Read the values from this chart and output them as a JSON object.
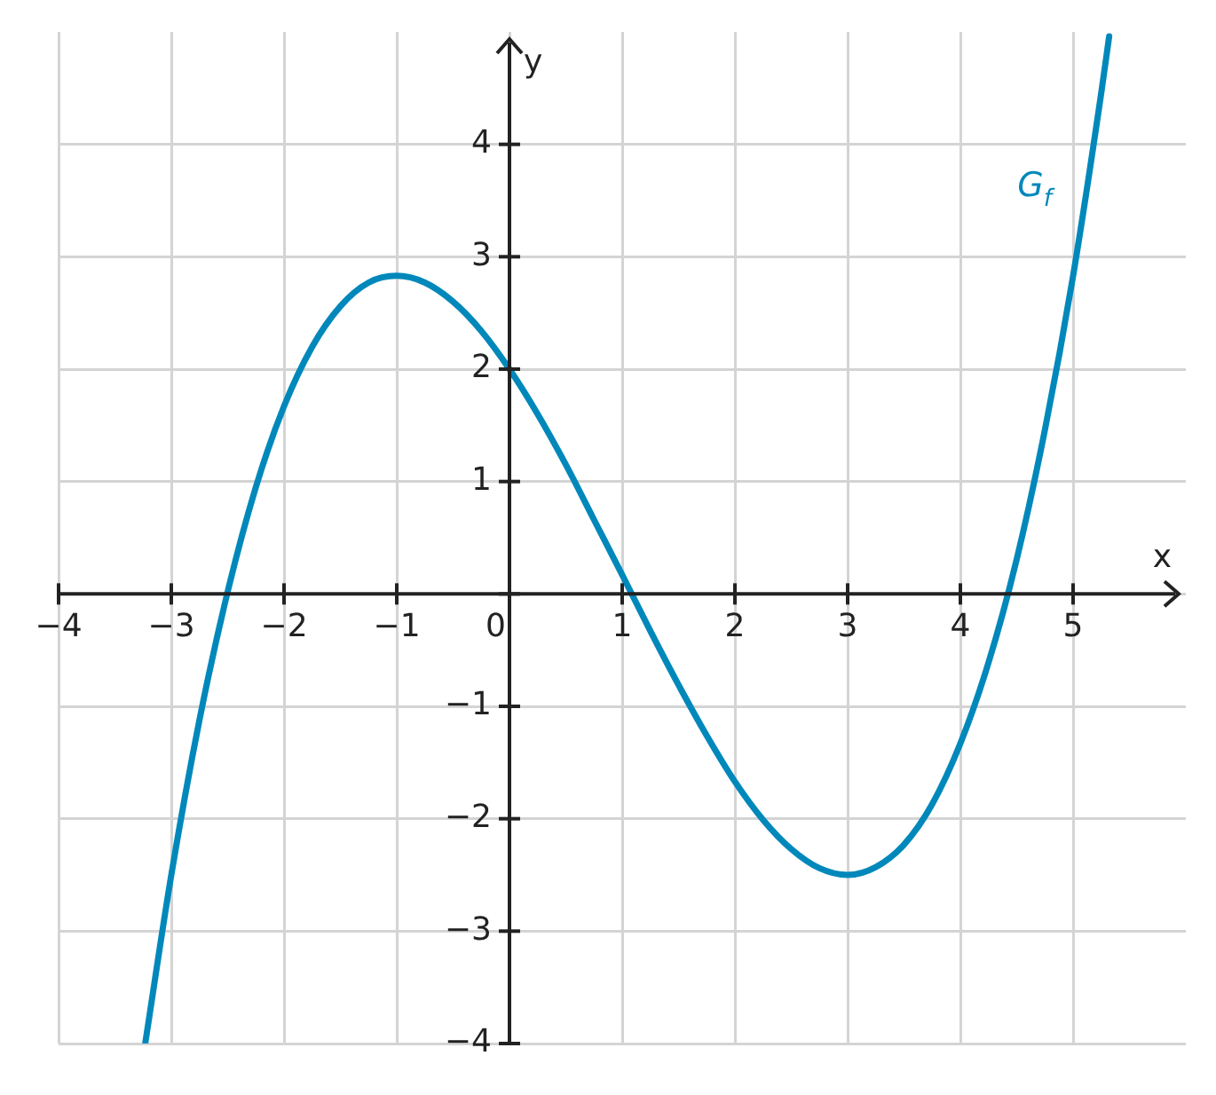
{
  "chart_data": {
    "type": "line",
    "xlabel": "x",
    "ylabel": "y",
    "x": [
      -3.23,
      -3,
      -2.75,
      -2.5,
      -2.25,
      -2,
      -1.75,
      -1.5,
      -1.25,
      -1,
      -0.75,
      -0.5,
      -0.25,
      0,
      0.25,
      0.5,
      0.75,
      1,
      1.25,
      1.5,
      1.75,
      2,
      2.25,
      2.5,
      2.75,
      3,
      3.25,
      3.5,
      3.75,
      4,
      4.25,
      4.5,
      4.75,
      5,
      5.25,
      5.32
    ],
    "series": [
      {
        "name": "G$_{f}$",
        "color": "#0088bb",
        "values": [
          -3.99,
          -2.5,
          -1.12,
          0.02,
          0.95,
          1.67,
          2.2,
          2.56,
          2.77,
          2.83,
          2.77,
          2.6,
          2.34,
          2.0,
          1.6,
          1.15,
          0.66,
          0.17,
          -0.33,
          -0.81,
          -1.26,
          -1.67,
          -2.01,
          -2.27,
          -2.44,
          -2.5,
          -2.43,
          -2.23,
          -1.87,
          -1.33,
          -0.61,
          0.31,
          1.46,
          2.83,
          4.46,
          4.96
        ]
      }
    ],
    "xlim": [
      -4,
      6
    ],
    "ylim": [
      -4,
      5
    ],
    "xticks": [
      -4,
      -3,
      -2,
      -1,
      0,
      1,
      2,
      3,
      4,
      5
    ],
    "yticks": [
      -4,
      -3,
      -2,
      -1,
      {
        "value": 0,
        "label": null
      },
      1,
      2,
      3,
      4
    ],
    "grid": true,
    "legend": false,
    "marker": "none",
    "line_style": "solid"
  }
}
